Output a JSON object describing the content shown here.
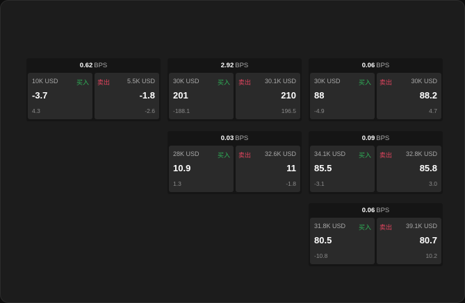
{
  "colors": {
    "buy": "#2fb158",
    "sell": "#e0445e",
    "background": "#1c1c1c"
  },
  "cards": [
    {
      "bps": "0.62",
      "unit": "BPS",
      "buy": {
        "size": "10K USD",
        "label": "买入",
        "price": "-3.7",
        "change": "4.3"
      },
      "sell": {
        "size": "5.5K USD",
        "label": "卖出",
        "price": "-1.8",
        "change": "-2.6"
      }
    },
    {
      "bps": "2.92",
      "unit": "BPS",
      "buy": {
        "size": "30K USD",
        "label": "买入",
        "price": "201",
        "change": "-188.1"
      },
      "sell": {
        "size": "30.1K USD",
        "label": "卖出",
        "price": "210",
        "change": "196.5"
      }
    },
    {
      "bps": "0.06",
      "unit": "BPS",
      "buy": {
        "size": "30K USD",
        "label": "买入",
        "price": "88",
        "change": "-4.9"
      },
      "sell": {
        "size": "30K USD",
        "label": "卖出",
        "price": "88.2",
        "change": "4.7"
      }
    },
    {
      "bps": "0.03",
      "unit": "BPS",
      "buy": {
        "size": "28K USD",
        "label": "买入",
        "price": "10.9",
        "change": "1.3"
      },
      "sell": {
        "size": "32.6K USD",
        "label": "卖出",
        "price": "11",
        "change": "-1.8"
      }
    },
    {
      "bps": "0.09",
      "unit": "BPS",
      "buy": {
        "size": "34.1K USD",
        "label": "买入",
        "price": "85.5",
        "change": "-3.1"
      },
      "sell": {
        "size": "32.8K USD",
        "label": "卖出",
        "price": "85.8",
        "change": "3.0"
      }
    },
    {
      "bps": "0.06",
      "unit": "BPS",
      "buy": {
        "size": "31.8K USD",
        "label": "买入",
        "price": "80.5",
        "change": "-10.8"
      },
      "sell": {
        "size": "39.1K USD",
        "label": "卖出",
        "price": "80.7",
        "change": "10.2"
      }
    }
  ]
}
